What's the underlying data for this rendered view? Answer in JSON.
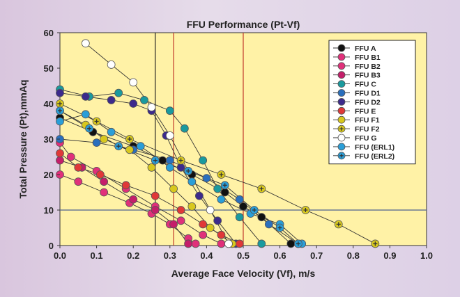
{
  "chart_data": {
    "type": "line",
    "title": "FFU Performance (Pt-Vf)",
    "xlabel": "Average Face Velocity (Vf), m/s",
    "ylabel": "Total Pressure (Pt),mmAq",
    "xlim": [
      0,
      1.0
    ],
    "ylim": [
      0,
      60
    ],
    "xticks": [
      "0.0",
      "0.1",
      "0.2",
      "0.3",
      "0.4",
      "0.5",
      "0.6",
      "0.7",
      "0.8",
      "0.9",
      "1.0"
    ],
    "yticks": [
      "0",
      "10",
      "20",
      "30",
      "40",
      "50",
      "60"
    ],
    "grid": false,
    "legend_position": "top-right",
    "reference_lines": {
      "vertical": [
        0.26,
        0.31,
        0.5
      ],
      "horizontal": [
        10
      ]
    },
    "series": [
      {
        "name": "FFU A",
        "color": "#111111",
        "marker": "dot",
        "points": [
          [
            0,
            36
          ],
          [
            0.09,
            32
          ],
          [
            0.2,
            28
          ],
          [
            0.28,
            24
          ],
          [
            0.36,
            20
          ],
          [
            0.45,
            15
          ],
          [
            0.5,
            11
          ],
          [
            0.55,
            8
          ],
          [
            0.63,
            0.5
          ]
        ]
      },
      {
        "name": "FFU B1",
        "color": "#e0307a",
        "marker": "dot",
        "points": [
          [
            0,
            29
          ],
          [
            0.03,
            25
          ],
          [
            0.1,
            21
          ],
          [
            0.18,
            16
          ],
          [
            0.26,
            11
          ],
          [
            0.33,
            7
          ],
          [
            0.39,
            3
          ],
          [
            0.44,
            0.5
          ]
        ]
      },
      {
        "name": "FFU B2",
        "color": "#e0307a",
        "marker": "dot",
        "points": [
          [
            0,
            20
          ],
          [
            0.05,
            18
          ],
          [
            0.12,
            15
          ],
          [
            0.19,
            12
          ],
          [
            0.25,
            9
          ],
          [
            0.3,
            6
          ],
          [
            0.35,
            2
          ],
          [
            0.37,
            0.5
          ]
        ]
      },
      {
        "name": "FFU B3",
        "color": "#c41e6a",
        "marker": "dot",
        "points": [
          [
            0,
            24
          ],
          [
            0.06,
            22
          ],
          [
            0.12,
            18
          ],
          [
            0.2,
            13
          ],
          [
            0.26,
            10
          ],
          [
            0.31,
            6
          ],
          [
            0.35,
            0.5
          ]
        ]
      },
      {
        "name": "FFU C",
        "color": "#1a9a9e",
        "marker": "dot",
        "points": [
          [
            0,
            44
          ],
          [
            0.08,
            42
          ],
          [
            0.16,
            43
          ],
          [
            0.23,
            41
          ],
          [
            0.3,
            38
          ],
          [
            0.34,
            33
          ],
          [
            0.39,
            24
          ],
          [
            0.43,
            16
          ],
          [
            0.49,
            8
          ],
          [
            0.55,
            0.5
          ]
        ]
      },
      {
        "name": "FFU D1",
        "color": "#2a6fbd",
        "marker": "dot",
        "points": [
          [
            0,
            30
          ],
          [
            0.1,
            29
          ],
          [
            0.2,
            27
          ],
          [
            0.3,
            24
          ],
          [
            0.4,
            19
          ],
          [
            0.49,
            13
          ],
          [
            0.57,
            6
          ],
          [
            0.65,
            0.5
          ]
        ]
      },
      {
        "name": "FFU D2",
        "color": "#3c2a8c",
        "marker": "dot",
        "points": [
          [
            0,
            43
          ],
          [
            0.07,
            42
          ],
          [
            0.14,
            41
          ],
          [
            0.2,
            40
          ],
          [
            0.25,
            38
          ],
          [
            0.29,
            31
          ],
          [
            0.33,
            22
          ],
          [
            0.38,
            14
          ],
          [
            0.43,
            7
          ],
          [
            0.48,
            0.5
          ]
        ]
      },
      {
        "name": "FFU E",
        "color": "#e03838",
        "marker": "dot",
        "points": [
          [
            0,
            26
          ],
          [
            0.05,
            22
          ],
          [
            0.11,
            20
          ],
          [
            0.18,
            17
          ],
          [
            0.26,
            14
          ],
          [
            0.33,
            10
          ],
          [
            0.39,
            6
          ],
          [
            0.44,
            3
          ],
          [
            0.49,
            0.5
          ]
        ]
      },
      {
        "name": "FFU F1",
        "color": "#d8c81e",
        "marker": "dot",
        "points": [
          [
            0,
            38
          ],
          [
            0.07,
            34
          ],
          [
            0.12,
            30
          ],
          [
            0.19,
            27
          ],
          [
            0.25,
            22
          ],
          [
            0.31,
            16
          ],
          [
            0.36,
            11
          ],
          [
            0.41,
            5
          ],
          [
            0.47,
            0.5
          ]
        ]
      },
      {
        "name": "FFU F2",
        "color": "#d8c81e",
        "marker": "plus",
        "points": [
          [
            0,
            40
          ],
          [
            0.1,
            35
          ],
          [
            0.19,
            30
          ],
          [
            0.33,
            24
          ],
          [
            0.44,
            20
          ],
          [
            0.55,
            16
          ],
          [
            0.67,
            10
          ],
          [
            0.76,
            6
          ],
          [
            0.86,
            0.5
          ]
        ]
      },
      {
        "name": "FFU G",
        "color": "#ffffff",
        "marker": "dot",
        "points": [
          [
            0.07,
            57
          ],
          [
            0.14,
            51
          ],
          [
            0.2,
            46
          ],
          [
            0.25,
            39
          ],
          [
            0.3,
            31
          ],
          [
            0.35,
            21
          ],
          [
            0.41,
            10
          ],
          [
            0.46,
            0.5
          ]
        ]
      },
      {
        "name": "FFU (ERL1)",
        "color": "#2a9ed8",
        "marker": "dot",
        "points": [
          [
            0,
            35
          ],
          [
            0.07,
            37
          ],
          [
            0.14,
            32
          ],
          [
            0.22,
            28
          ],
          [
            0.3,
            22
          ],
          [
            0.36,
            18
          ],
          [
            0.44,
            13
          ],
          [
            0.52,
            9
          ],
          [
            0.6,
            6
          ],
          [
            0.66,
            0.5
          ]
        ]
      },
      {
        "name": "FFU (ERL2)",
        "color": "#2a9ed8",
        "marker": "plus",
        "points": [
          [
            0,
            38
          ],
          [
            0.08,
            33
          ],
          [
            0.16,
            28
          ],
          [
            0.26,
            24
          ],
          [
            0.35,
            21
          ],
          [
            0.45,
            17
          ],
          [
            0.53,
            10
          ],
          [
            0.6,
            5
          ],
          [
            0.65,
            0.5
          ]
        ]
      }
    ]
  }
}
